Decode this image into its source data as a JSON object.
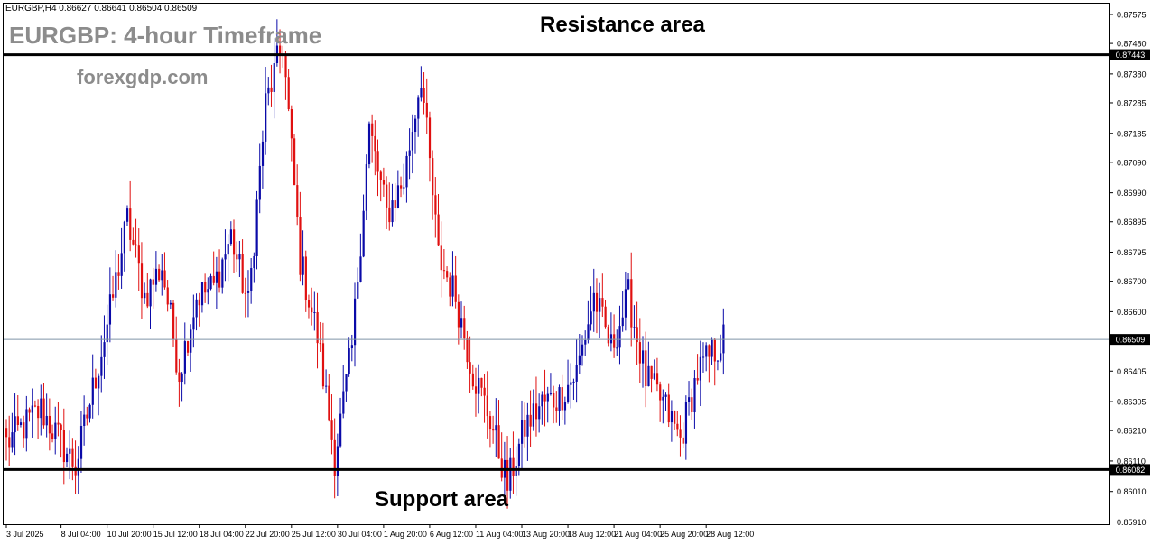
{
  "header": {
    "symbol_info": "EURGBP,H4  0.86627 0.86641 0.86504 0.86509",
    "title": "EURGBP: 4-hour Timeframe",
    "watermark": "forexgdp.com"
  },
  "annotations": {
    "resistance_label": "Resistance area",
    "support_label": "Support area"
  },
  "colors": {
    "bull": "#0a0aa8",
    "bear": "#e01010",
    "level_line": "#000000",
    "current_price_line": "#7f94a8",
    "price_tag_bg": "#000000",
    "price_tag_text": "#ffffff"
  },
  "chart_data": {
    "type": "candlestick",
    "symbol": "EURGBP",
    "timeframe": "H4",
    "ylim": [
      0.85873,
      0.87784
    ],
    "y_ticks": [
      "0.87575",
      "0.87480",
      "0.87380",
      "0.87285",
      "0.87185",
      "0.87090",
      "0.86990",
      "0.86895",
      "0.86795",
      "0.86700",
      "0.86600",
      "0.86405",
      "0.86305",
      "0.86210",
      "0.86110",
      "0.86010",
      "0.85910"
    ],
    "x_ticks": [
      "3 Jul 2025",
      "8 Jul 04:00",
      "10 Jul 20:00",
      "15 Jul 12:00",
      "18 Jul 04:00",
      "22 Jul 20:00",
      "25 Jul 12:00",
      "30 Jul 04:00",
      "1 Aug 20:00",
      "6 Aug 12:00",
      "11 Aug 04:00",
      "13 Aug 20:00",
      "18 Aug 12:00",
      "21 Aug 04:00",
      "25 Aug 20:00",
      "28 Aug 12:00"
    ],
    "levels": [
      {
        "name": "resistance",
        "value": "0.87443"
      },
      {
        "name": "support",
        "value": "0.86082"
      },
      {
        "name": "current_price",
        "value": "0.86509"
      }
    ],
    "anchors": [
      {
        "date": "3 Jul 2025",
        "price": 0.8617
      },
      {
        "date": "7 Jul 2025",
        "price": 0.8628
      },
      {
        "date": "9 Jul 2025",
        "price": 0.8609
      },
      {
        "date": "11 Jul 2025",
        "price": 0.866
      },
      {
        "date": "14 Jul 2025",
        "price": 0.869
      },
      {
        "date": "15 Jul 2025",
        "price": 0.8665
      },
      {
        "date": "16 Jul 2025",
        "price": 0.8675
      },
      {
        "date": "17 Jul 2025",
        "price": 0.864
      },
      {
        "date": "18 Jul 2025",
        "price": 0.8665
      },
      {
        "date": "21 Jul 2025",
        "price": 0.8668
      },
      {
        "date": "22 Jul 2025",
        "price": 0.8685
      },
      {
        "date": "23 Jul 2025",
        "price": 0.8662
      },
      {
        "date": "24 Jul 2025",
        "price": 0.8728
      },
      {
        "date": "25 Jul 2025",
        "price": 0.8748
      },
      {
        "date": "28 Jul 2025",
        "price": 0.8677
      },
      {
        "date": "29 Jul 2025",
        "price": 0.8652
      },
      {
        "date": "30 Jul 2025",
        "price": 0.8612
      },
      {
        "date": "31 Jul 2025",
        "price": 0.8648
      },
      {
        "date": "1 Aug 2025",
        "price": 0.872
      },
      {
        "date": "4 Aug 2025",
        "price": 0.8692
      },
      {
        "date": "5 Aug 2025",
        "price": 0.8703
      },
      {
        "date": "6 Aug 2025",
        "price": 0.8738
      },
      {
        "date": "7 Aug 2025",
        "price": 0.8678
      },
      {
        "date": "8 Aug 2025",
        "price": 0.8665
      },
      {
        "date": "11 Aug 2025",
        "price": 0.864
      },
      {
        "date": "12 Aug 2025",
        "price": 0.8625
      },
      {
        "date": "13 Aug 2025",
        "price": 0.8603
      },
      {
        "date": "14 Aug 2025",
        "price": 0.8622
      },
      {
        "date": "15 Aug 2025",
        "price": 0.863
      },
      {
        "date": "18 Aug 2025",
        "price": 0.8632
      },
      {
        "date": "19 Aug 2025",
        "price": 0.864
      },
      {
        "date": "20 Aug 2025",
        "price": 0.8665
      },
      {
        "date": "21 Aug 2025",
        "price": 0.8648
      },
      {
        "date": "22 Aug 2025",
        "price": 0.8665
      },
      {
        "date": "25 Aug 2025",
        "price": 0.8638
      },
      {
        "date": "26 Aug 2025",
        "price": 0.863
      },
      {
        "date": "27 Aug 2025",
        "price": 0.8618
      },
      {
        "date": "28 Aug 2025",
        "price": 0.864
      },
      {
        "date": "29 Aug 2025",
        "price": 0.8651
      }
    ]
  }
}
